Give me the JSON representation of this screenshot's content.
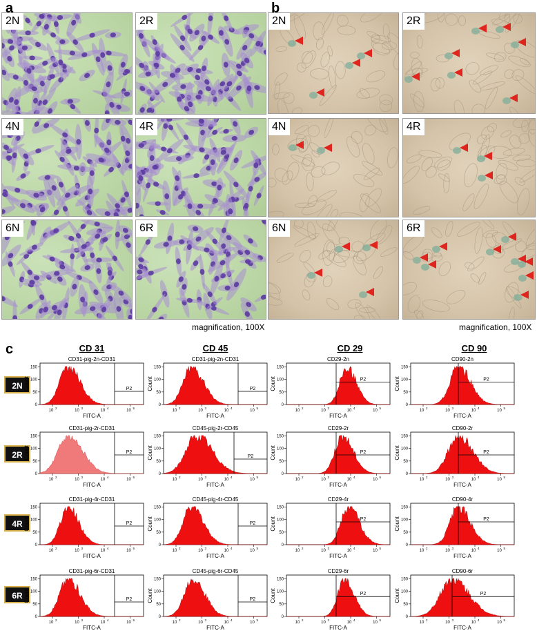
{
  "panels": {
    "a": {
      "label": "a",
      "tiles": [
        "2N",
        "2R",
        "4N",
        "4R",
        "6N",
        "6R"
      ],
      "caption": "magnification, 100X"
    },
    "b": {
      "label": "b",
      "tiles": [
        "2N",
        "2R",
        "4N",
        "4R",
        "6N",
        "6R"
      ],
      "caption": "magnification, 100X",
      "arrow_color": "#e0241e"
    },
    "c": {
      "label": "c",
      "columns": [
        "CD 31",
        "CD 45",
        "CD 29",
        "CD 90"
      ],
      "rows": [
        "2N",
        "2R",
        "4R",
        "6R"
      ],
      "gate_label": "P2",
      "y_axis_label": "Count",
      "x_axis_label": "FITC-A",
      "tick_labels": {
        "x": [
          "10",
          "10",
          "10",
          "10"
        ],
        "x_exp": [
          "2",
          "3",
          "4",
          "5"
        ],
        "y": [
          "0",
          "50",
          "100",
          "150"
        ]
      },
      "plot_titles": [
        [
          "CD31-pig-2n-CD31",
          "CD31-pig-2n-CD31",
          "CD29-2n",
          "CD90-2n"
        ],
        [
          "CD31-pig-2r-CD31",
          "CD45-pig-2r-CD45",
          "CD29-2r",
          "CD90-2r"
        ],
        [
          "CD31-pig-4r-CD31",
          "CD45-pig-4r-CD45",
          "CD29-4r",
          "CD90-4r"
        ],
        [
          "CD31-pig-6r-CD31",
          "CD45-pig-6r-CD45",
          "CD29-6r",
          "CD90-6r"
        ]
      ],
      "histogram_color": "#ee1010",
      "histogram_color_faded": "#f07a7a"
    }
  }
}
